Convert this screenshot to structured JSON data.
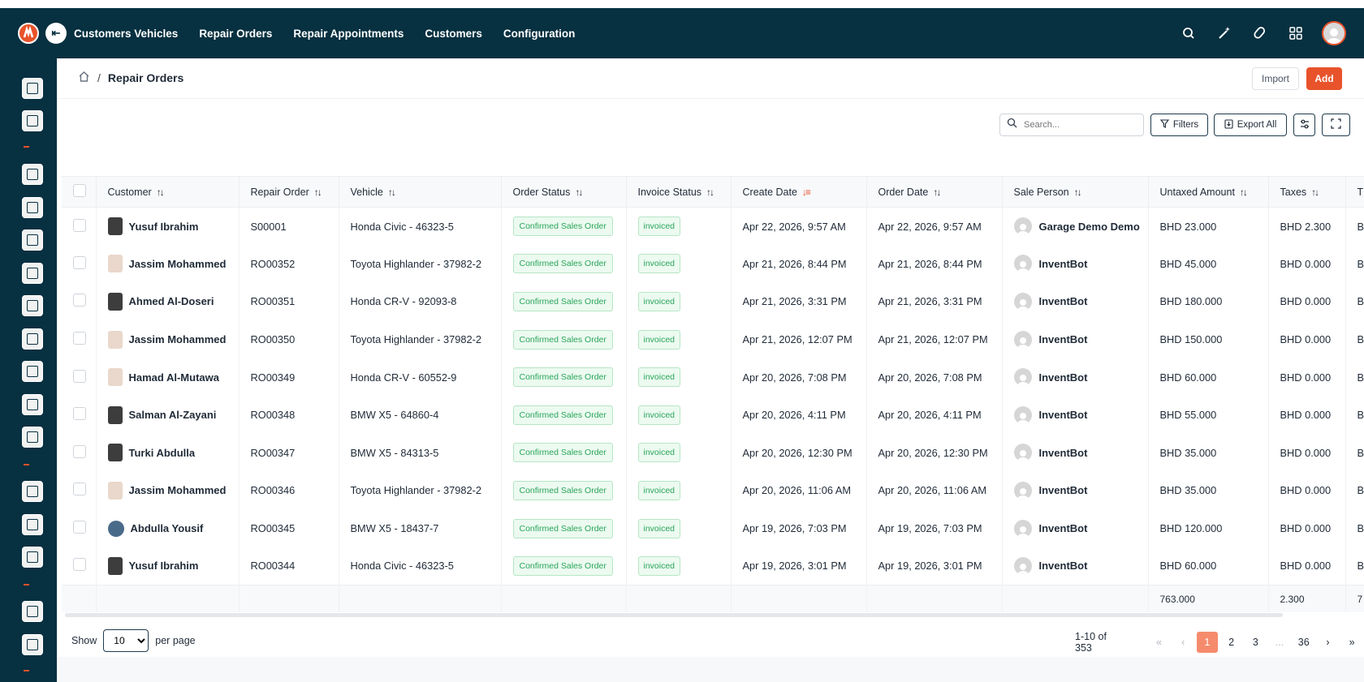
{
  "nav": [
    "Customers Vehicles",
    "Repair Orders",
    "Repair Appointments",
    "Customers",
    "Configuration"
  ],
  "breadcrumb": {
    "current": "Repair Orders",
    "separator": "/"
  },
  "actions": {
    "import": "Import",
    "add": "Add"
  },
  "toolbar": {
    "search_placeholder": "Search...",
    "filters": "Filters",
    "export_all": "Export All"
  },
  "table": {
    "columns": [
      "Customer",
      "Repair Order",
      "Vehicle",
      "Order Status",
      "Invoice Status",
      "Create Date",
      "Order Date",
      "Sale Person",
      "Untaxed Amount",
      "Taxes"
    ],
    "rows": [
      {
        "customer": "Yusuf Ibrahim",
        "order": "S00001",
        "vehicle": "Honda Civic - 46323-5",
        "status": "Confirmed Sales Order",
        "invoice": "invoiced",
        "created": "Apr 22, 2026, 9:57 AM",
        "ordered": "Apr 22, 2026, 9:57 AM",
        "sales": "Garage Demo Demo",
        "untaxed": "BHD 23.000",
        "taxes": "BHD 2.300"
      },
      {
        "customer": "Jassim Mohammed",
        "order": "RO00352",
        "vehicle": "Toyota Highlander - 37982-2",
        "status": "Confirmed Sales Order",
        "invoice": "invoiced",
        "created": "Apr 21, 2026, 8:44 PM",
        "ordered": "Apr 21, 2026, 8:44 PM",
        "sales": "InventBot",
        "untaxed": "BHD 45.000",
        "taxes": "BHD 0.000"
      },
      {
        "customer": "Ahmed Al-Doseri",
        "order": "RO00351",
        "vehicle": "Honda CR-V - 92093-8",
        "status": "Confirmed Sales Order",
        "invoice": "invoiced",
        "created": "Apr 21, 2026, 3:31 PM",
        "ordered": "Apr 21, 2026, 3:31 PM",
        "sales": "InventBot",
        "untaxed": "BHD 180.000",
        "taxes": "BHD 0.000"
      },
      {
        "customer": "Jassim Mohammed",
        "order": "RO00350",
        "vehicle": "Toyota Highlander - 37982-2",
        "status": "Confirmed Sales Order",
        "invoice": "invoiced",
        "created": "Apr 21, 2026, 12:07 PM",
        "ordered": "Apr 21, 2026, 12:07 PM",
        "sales": "InventBot",
        "untaxed": "BHD 150.000",
        "taxes": "BHD 0.000"
      },
      {
        "customer": "Hamad Al-Mutawa",
        "order": "RO00349",
        "vehicle": "Honda CR-V - 60552-9",
        "status": "Confirmed Sales Order",
        "invoice": "invoiced",
        "created": "Apr 20, 2026, 7:08 PM",
        "ordered": "Apr 20, 2026, 7:08 PM",
        "sales": "InventBot",
        "untaxed": "BHD 60.000",
        "taxes": "BHD 0.000"
      },
      {
        "customer": "Salman Al-Zayani",
        "order": "RO00348",
        "vehicle": "BMW X5 - 64860-4",
        "status": "Confirmed Sales Order",
        "invoice": "invoiced",
        "created": "Apr 20, 2026, 4:11 PM",
        "ordered": "Apr 20, 2026, 4:11 PM",
        "sales": "InventBot",
        "untaxed": "BHD 55.000",
        "taxes": "BHD 0.000"
      },
      {
        "customer": "Turki Abdulla",
        "order": "RO00347",
        "vehicle": "BMW X5 - 84313-5",
        "status": "Confirmed Sales Order",
        "invoice": "invoiced",
        "created": "Apr 20, 2026, 12:30 PM",
        "ordered": "Apr 20, 2026, 12:30 PM",
        "sales": "InventBot",
        "untaxed": "BHD 35.000",
        "taxes": "BHD 0.000"
      },
      {
        "customer": "Jassim Mohammed",
        "order": "RO00346",
        "vehicle": "Toyota Highlander - 37982-2",
        "status": "Confirmed Sales Order",
        "invoice": "invoiced",
        "created": "Apr 20, 2026, 11:06 AM",
        "ordered": "Apr 20, 2026, 11:06 AM",
        "sales": "InventBot",
        "untaxed": "BHD 35.000",
        "taxes": "BHD 0.000"
      },
      {
        "customer": "Abdulla Yousif",
        "order": "RO00345",
        "vehicle": "BMW X5 - 18437-7",
        "status": "Confirmed Sales Order",
        "invoice": "invoiced",
        "created": "Apr 19, 2026, 7:03 PM",
        "ordered": "Apr 19, 2026, 7:03 PM",
        "sales": "InventBot",
        "untaxed": "BHD 120.000",
        "taxes": "BHD 0.000"
      },
      {
        "customer": "Yusuf Ibrahim",
        "order": "RO00344",
        "vehicle": "Honda Civic - 46323-5",
        "status": "Confirmed Sales Order",
        "invoice": "invoiced",
        "created": "Apr 19, 2026, 3:01 PM",
        "ordered": "Apr 19, 2026, 3:01 PM",
        "sales": "InventBot",
        "untaxed": "BHD 60.000",
        "taxes": "BHD 0.000"
      }
    ],
    "totals": {
      "untaxed": "763.000",
      "taxes": "2.300"
    }
  },
  "pagination": {
    "show_label": "Show",
    "per_page_value": "10",
    "per_page_label": "per page",
    "range": "1-10 of 353",
    "pages": [
      "1",
      "2",
      "3",
      "...",
      "36"
    ],
    "current": "1"
  },
  "colors": {
    "sidebar": "#073040",
    "accent": "#e8532b",
    "success": "#2aa55a"
  }
}
